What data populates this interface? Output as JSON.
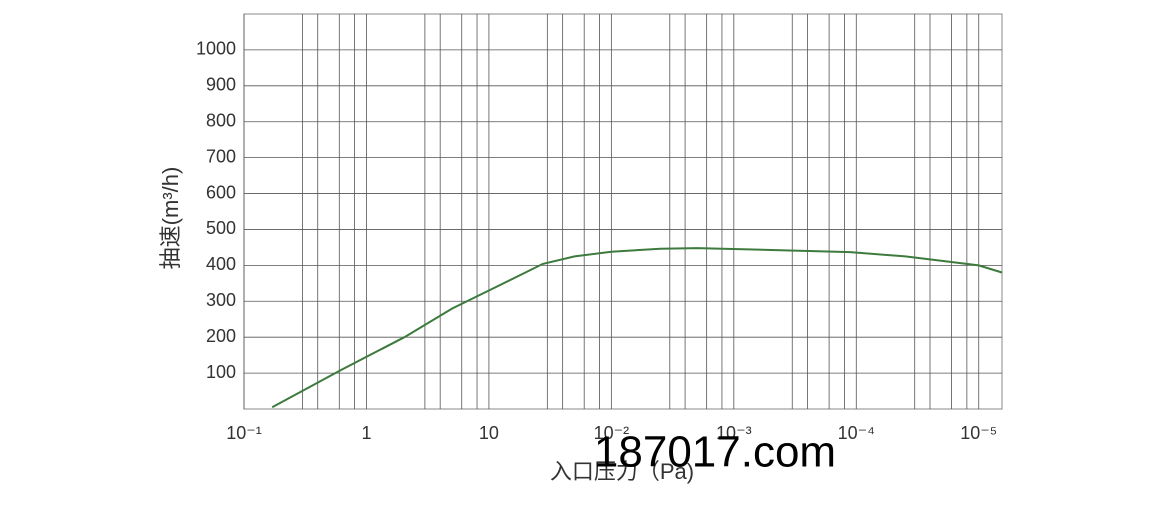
{
  "chart_data": {
    "type": "line",
    "xlabel": "入口压力（Pa)",
    "ylabel": "抽速(m³/h)",
    "annotation": "187017.com",
    "x": [
      0.23,
      0.8,
      1.31,
      1.7,
      2.0,
      2.44,
      2.7,
      3.0,
      3.4,
      3.7,
      4.2,
      4.95,
      5.4,
      5.76,
      6.0,
      6.19
    ],
    "series": [
      {
        "name": "抽速",
        "color": "#3d7a3d",
        "values": [
          5,
          110,
          200,
          280,
          330,
          404,
          425,
          438,
          446,
          448,
          444,
          437,
          425,
          410,
          400,
          380
        ]
      }
    ],
    "xlim": [
      0,
      6.19
    ],
    "xticks": [
      {
        "value": 0,
        "label": "10⁻¹"
      },
      {
        "value": 1,
        "label": "1"
      },
      {
        "value": 2,
        "label": "10"
      },
      {
        "value": 3,
        "label": "10⁻²"
      },
      {
        "value": 4,
        "label": "10⁻³"
      },
      {
        "value": 5,
        "label": "10⁻⁴"
      },
      {
        "value": 6,
        "label": "10⁻⁵"
      }
    ],
    "ylim": [
      0,
      1100
    ],
    "yticks": [
      100,
      200,
      300,
      400,
      500,
      600,
      700,
      800,
      900,
      1000
    ],
    "grid": true
  }
}
